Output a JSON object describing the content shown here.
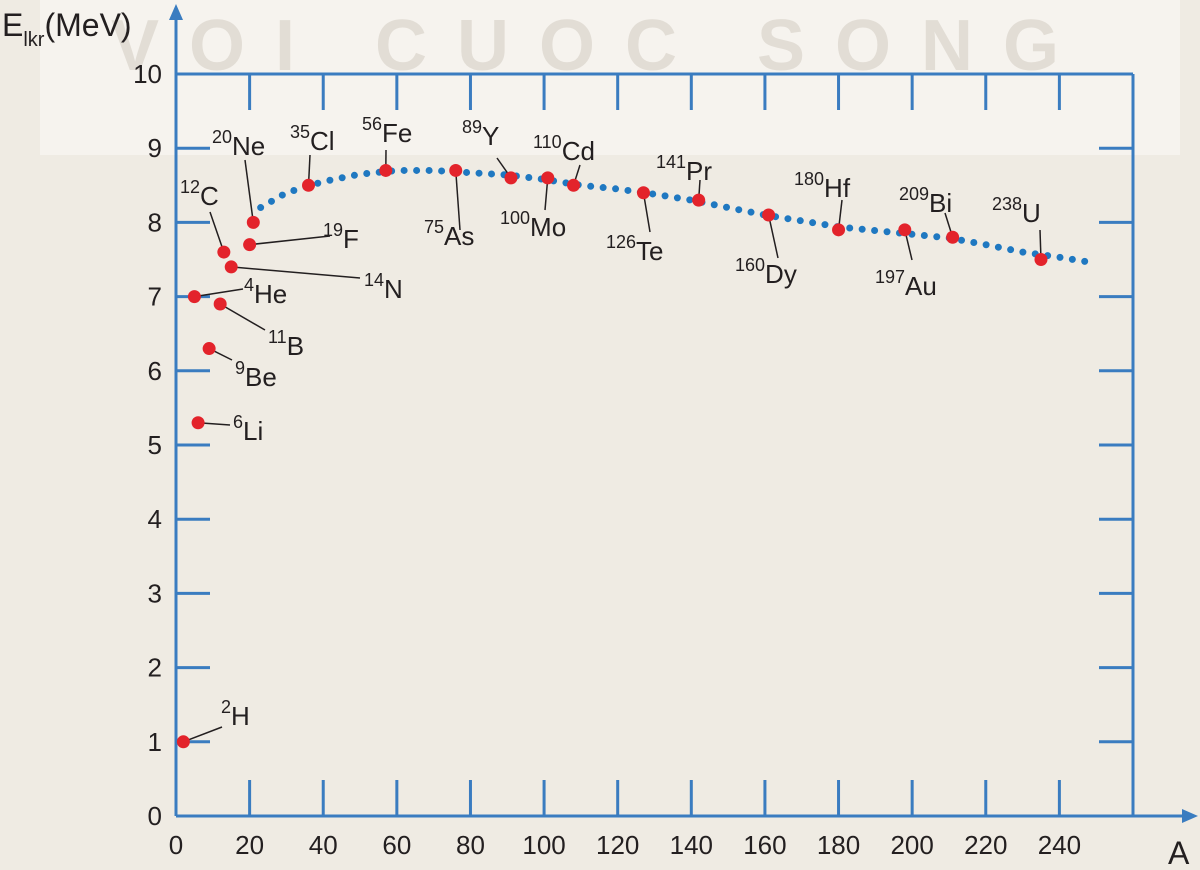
{
  "chart_data": {
    "type": "scatter",
    "watermark": "VOI CUOC SONG",
    "y_label": {
      "main": "E",
      "sub": "lkr",
      "unit": "(MeV)"
    },
    "x_label": "A",
    "xlim": [
      0,
      260
    ],
    "ylim": [
      0,
      10
    ],
    "xticks": [
      0,
      20,
      40,
      60,
      80,
      100,
      120,
      140,
      160,
      180,
      200,
      220,
      240
    ],
    "yticks": [
      0,
      1,
      2,
      3,
      4,
      5,
      6,
      7,
      8,
      9,
      10
    ],
    "series": [
      {
        "color": "#e3232b",
        "x": [
          2,
          5,
          6,
          9,
          12,
          13,
          15,
          20,
          21,
          36,
          57,
          76,
          91,
          101,
          108,
          127,
          142,
          161,
          180,
          198,
          211,
          235
        ],
        "values": [
          1.0,
          7.0,
          5.3,
          6.3,
          6.9,
          7.6,
          7.4,
          7.7,
          8.0,
          8.5,
          8.7,
          8.7,
          8.6,
          8.6,
          8.5,
          8.4,
          8.3,
          8.1,
          7.9,
          7.9,
          7.8,
          7.5
        ],
        "labels": [
          {
            "mass": "2",
            "symbol": "H"
          },
          {
            "mass": "4",
            "symbol": "He"
          },
          {
            "mass": "6",
            "symbol": "Li"
          },
          {
            "mass": "9",
            "symbol": "Be"
          },
          {
            "mass": "11",
            "symbol": "B"
          },
          {
            "mass": "12",
            "symbol": "C"
          },
          {
            "mass": "14",
            "symbol": "N"
          },
          {
            "mass": "19",
            "symbol": "F"
          },
          {
            "mass": "20",
            "symbol": "Ne"
          },
          {
            "mass": "35",
            "symbol": "Cl"
          },
          {
            "mass": "56",
            "symbol": "Fe"
          },
          {
            "mass": "75",
            "symbol": "As"
          },
          {
            "mass": "89",
            "symbol": "Y"
          },
          {
            "mass": "100",
            "symbol": "Mo"
          },
          {
            "mass": "110",
            "symbol": "Cd"
          },
          {
            "mass": "126",
            "symbol": "Te"
          },
          {
            "mass": "141",
            "symbol": "Pr"
          },
          {
            "mass": "160",
            "symbol": "Dy"
          },
          {
            "mass": "180",
            "symbol": "Hf"
          },
          {
            "mass": "197",
            "symbol": "Au"
          },
          {
            "mass": "209",
            "symbol": "Bi"
          },
          {
            "mass": "238",
            "symbol": "U"
          }
        ]
      },
      {
        "color": "#1f78c1",
        "style": "dotted",
        "x": [
          23,
          30,
          40,
          50,
          60,
          70,
          80,
          90,
          100,
          110,
          120,
          130,
          140,
          150,
          160,
          170,
          180,
          190,
          200,
          210,
          220,
          230,
          240,
          250
        ],
        "values": [
          8.2,
          8.4,
          8.55,
          8.65,
          8.7,
          8.7,
          8.67,
          8.64,
          8.58,
          8.5,
          8.45,
          8.38,
          8.3,
          8.2,
          8.1,
          8.02,
          7.94,
          7.89,
          7.84,
          7.79,
          7.7,
          7.6,
          7.53,
          7.45
        ]
      }
    ]
  }
}
